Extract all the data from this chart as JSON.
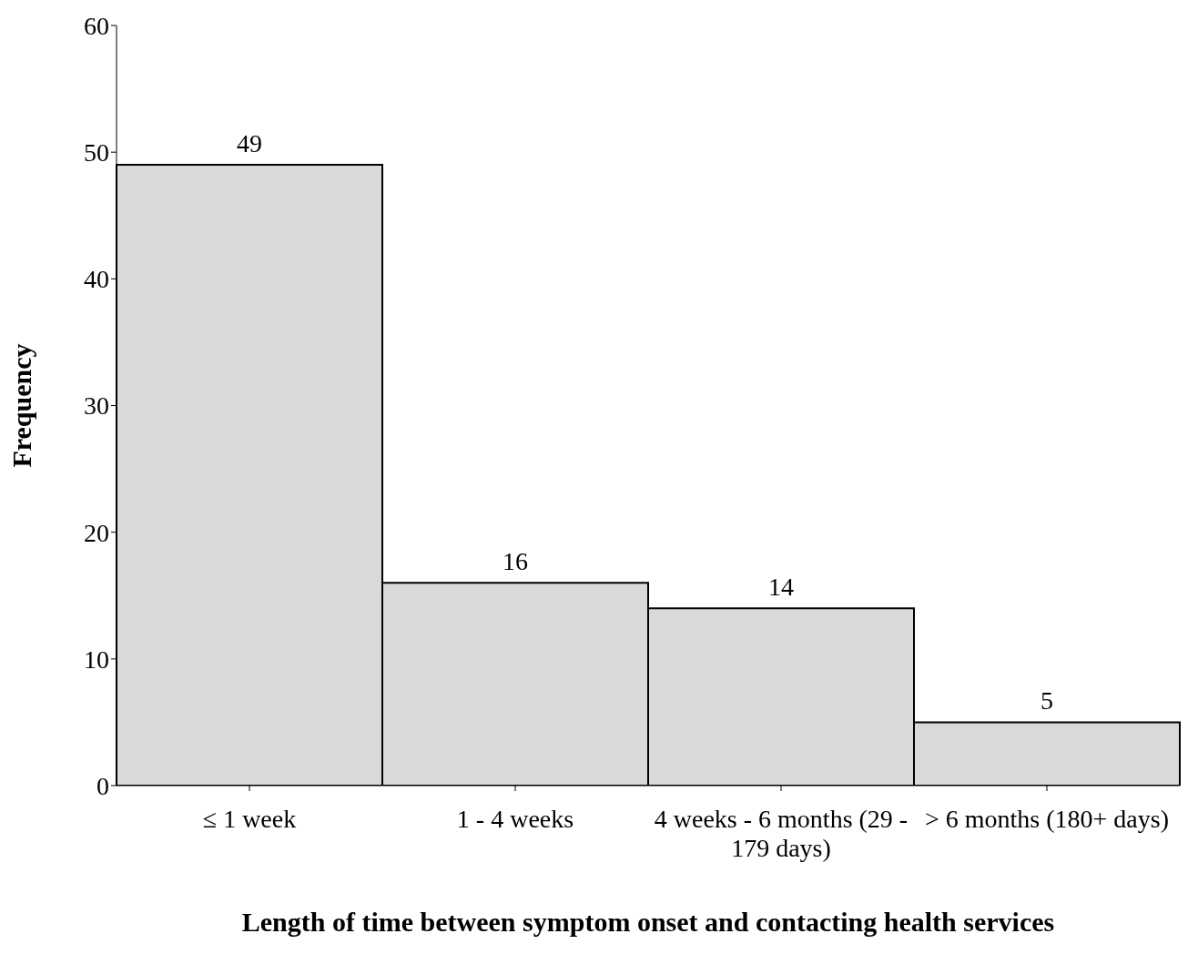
{
  "chart_data": {
    "type": "bar",
    "xlabel": "Length of time between symptom onset and contacting health services",
    "ylabel": "Frequency",
    "categories": [
      "≤ 1 week",
      "1 - 4 weeks",
      "4 weeks - 6 months (29 - 179 days)",
      "> 6 months (180+ days)"
    ],
    "values": [
      49,
      16,
      14,
      5
    ],
    "color": "#d9d9d9",
    "ylim": [
      0,
      60
    ],
    "yticks": [
      0,
      10,
      20,
      30,
      40,
      50,
      60
    ],
    "data_labels": true,
    "grid": false,
    "legend": false
  }
}
